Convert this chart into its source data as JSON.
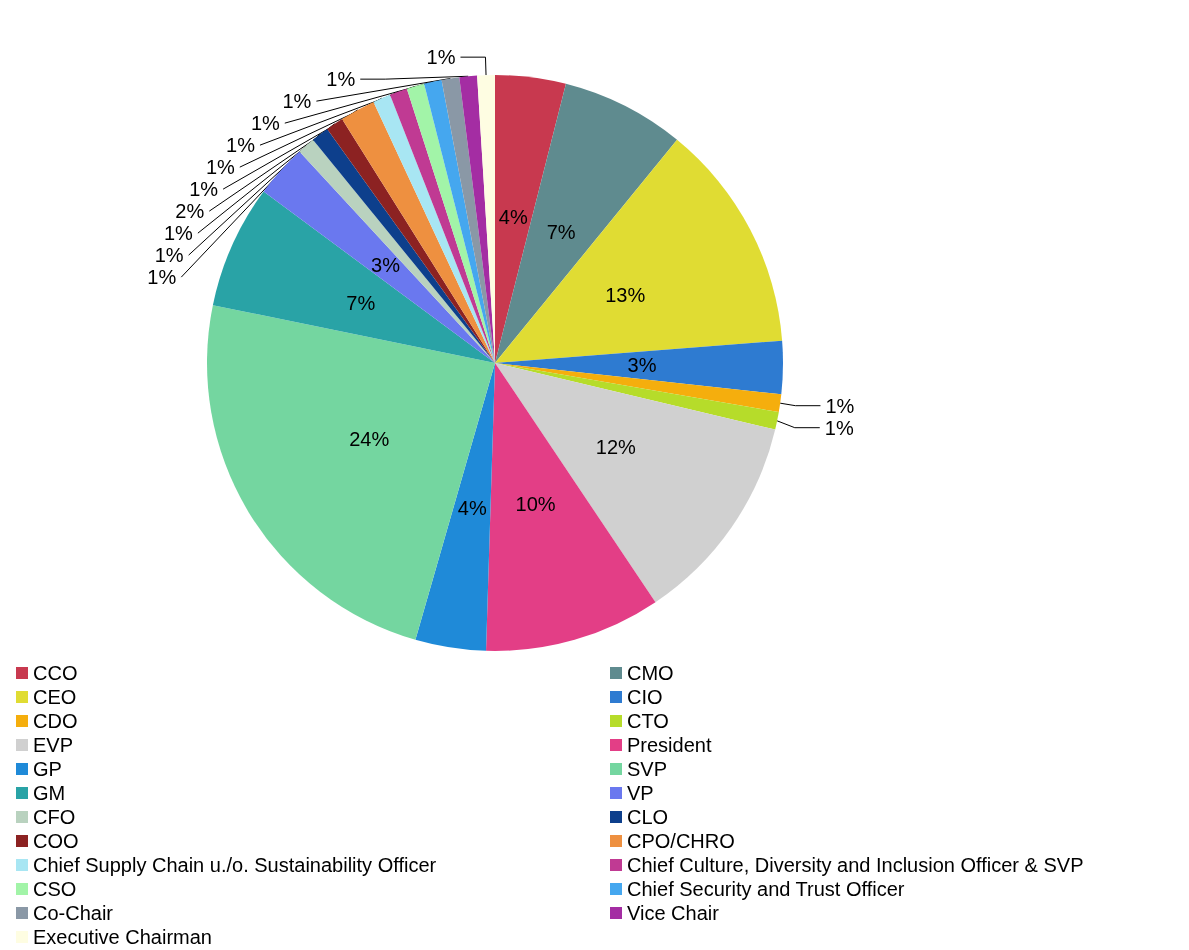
{
  "chart_data": {
    "type": "pie",
    "categories": [
      "CCO",
      "CMO",
      "CEO",
      "CIO",
      "CDO",
      "CTO",
      "EVP",
      "President",
      "GP",
      "SVP",
      "GM",
      "VP",
      "CFO",
      "CLO",
      "COO",
      "CPO/CHRO",
      "Chief Supply Chain u./o. Sustainability Officer",
      "Chief Culture, Diversity and Inclusion Officer & SVP",
      "CSO",
      "Chief Security and Trust Officer",
      "Co-Chair",
      "Vice Chair",
      "Executive Chairman"
    ],
    "values": [
      4,
      7,
      13,
      3,
      1,
      1,
      12,
      10,
      4,
      24,
      7,
      3,
      1,
      1,
      1,
      2,
      1,
      1,
      1,
      1,
      1,
      1,
      1
    ],
    "colors": [
      "#c8394f",
      "#5f8b8f",
      "#e0dc33",
      "#2e7bd1",
      "#f5ae0d",
      "#b6dc2a",
      "#d0d0d0",
      "#e33e86",
      "#1f8ad8",
      "#74d6a0",
      "#29a3a6",
      "#6a78ef",
      "#b9d2bf",
      "#0d3f8c",
      "#8c2222",
      "#ee9040",
      "#a8e6f3",
      "#c03a93",
      "#a2f4a8",
      "#45a7ef",
      "#8a98a6",
      "#a42da3",
      "#fefde2"
    ],
    "value_labels": [
      "4%",
      "7%",
      "13%",
      "3%",
      "1%",
      "1%",
      "12%",
      "10%",
      "4%",
      "24%",
      "7%",
      "3%",
      "1%",
      "1%",
      "1%",
      "2%",
      "1%",
      "1%",
      "1%",
      "1%",
      "1%",
      "1%",
      "1%"
    ],
    "legend": "bottom"
  }
}
